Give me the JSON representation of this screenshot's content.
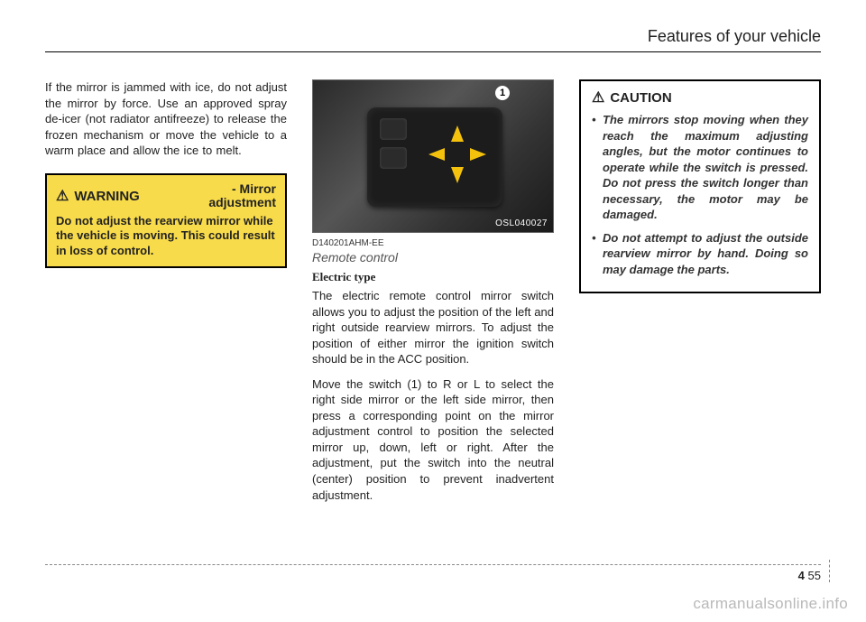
{
  "header": {
    "chapter_title": "Features of your vehicle"
  },
  "col1": {
    "intro": "If the mirror is jammed with ice, do not adjust the mirror by force. Use an approved spray de-icer (not radiator antifreeze) to release the frozen mechanism or move the vehicle to a warm place and allow the ice to melt.",
    "warning_label": "WARNING",
    "warning_dash": "- Mirror",
    "warning_dash2": "adjustment",
    "warning_body": "Do not adjust the rearview mirror while the vehicle is moving. This could result in loss of control."
  },
  "col2": {
    "photo_tag": "OSL040027",
    "photo_marker": "1",
    "figcode": "D140201AHM-EE",
    "subhead": "Remote control",
    "subhead2": "Electric type",
    "para1": "The electric remote control mirror switch allows you to adjust the position of the left and right outside rearview mirrors. To adjust the position of either mirror the ignition switch should be in the ACC position.",
    "para2": "Move the switch (1) to R or L to select the right side mirror or the left side mirror, then press a corresponding point on the mirror adjustment control to position the selected mirror up, down, left or right. After the adjustment, put the switch into the neutral (center) position to prevent inadvertent adjustment."
  },
  "col3": {
    "caution_label": "CAUTION",
    "item1": "The mirrors stop moving when they reach the maximum adjusting angles, but the motor continues to operate while the switch is pressed. Do not press the switch longer than necessary, the motor may be damaged.",
    "item2": "Do not attempt to adjust the outside rearview mirror by hand. Doing so may damage the parts."
  },
  "footer": {
    "section": "4",
    "page": "55"
  },
  "watermark": "carmanualsonline.info"
}
